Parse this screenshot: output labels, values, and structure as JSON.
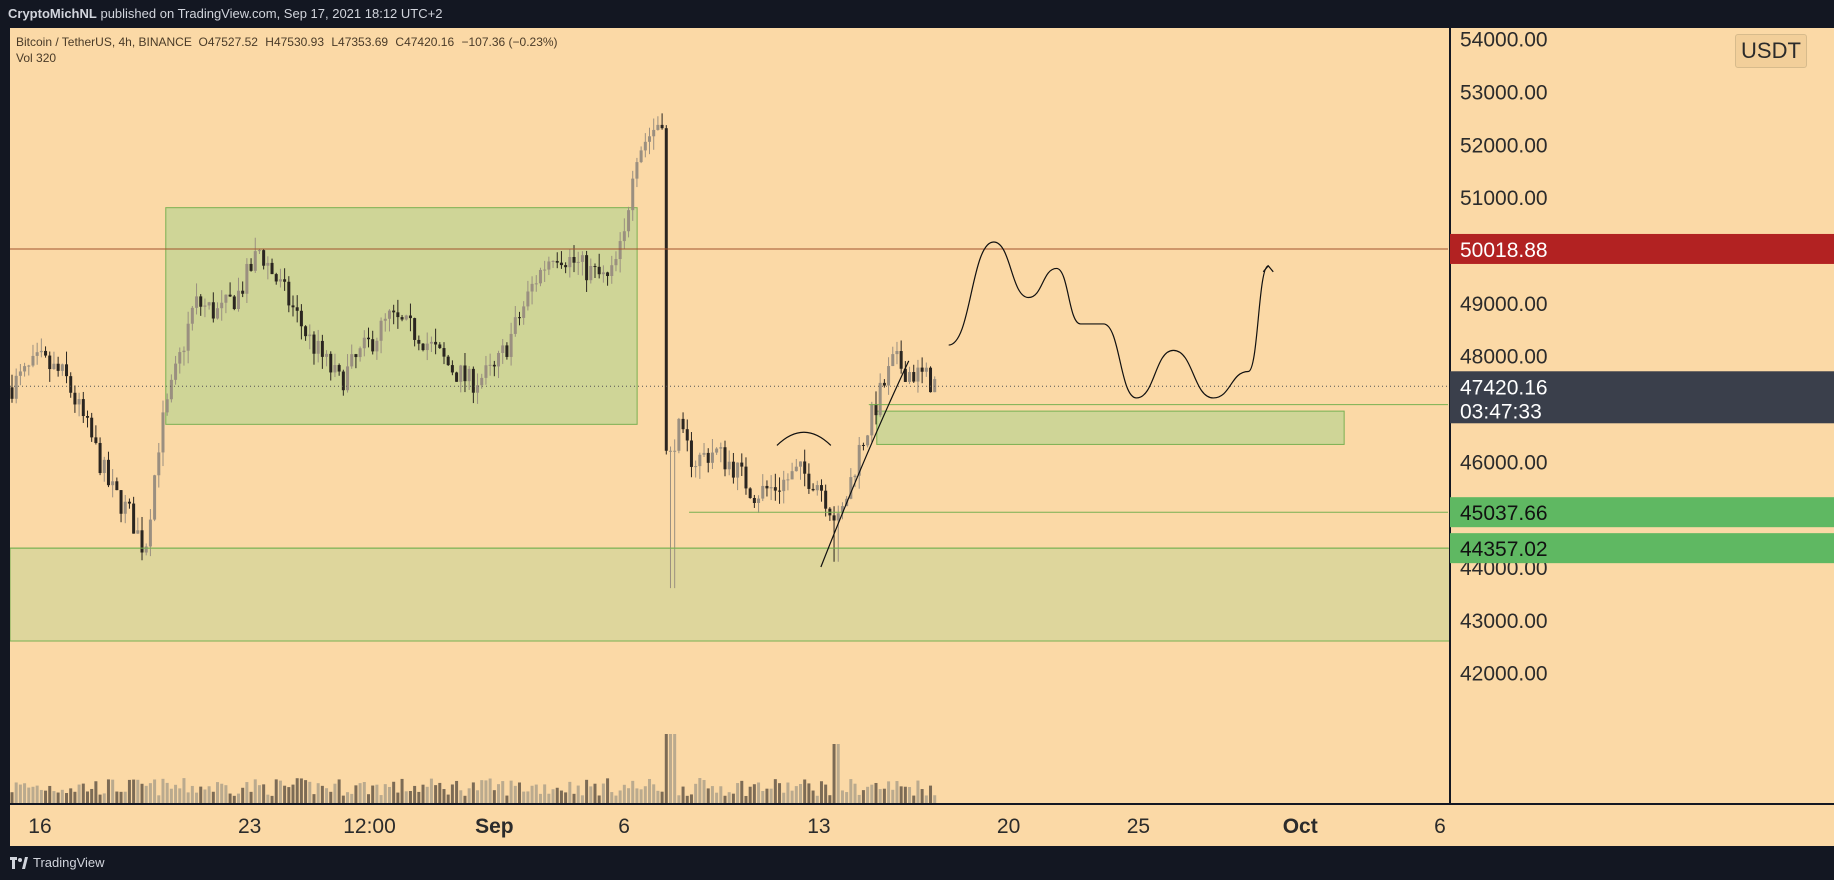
{
  "header": {
    "publisher": "CryptoMichNL",
    "publish_text": "published on TradingView.com, Sep 17, 2021 18:12 UTC+2"
  },
  "footer": {
    "brand": "TradingView"
  },
  "colors": {
    "background": "#fbd9a6",
    "frame": "#131722",
    "candle_up": "#9a8f80",
    "candle_down": "#2a2520",
    "zone_fill": "#c7d394",
    "zone_border": "#79b052",
    "resistance_line": "#a0522d",
    "resistance_label": "#b22222",
    "support_label": "#5fb862",
    "price_label": "#3a3f4b"
  },
  "chart_data": {
    "type": "candlestick",
    "symbol": "Bitcoin / TetherUS, 4h, BINANCE",
    "ohlc": {
      "open": "O47527.52",
      "high": "H47530.93",
      "low": "L47353.69",
      "close": "C47420.16",
      "change": "−107.36 (−0.23%)"
    },
    "volume_label": "Vol 320",
    "unit": "USDT",
    "ylim": [
      41900,
      54200
    ],
    "y_ticks": [
      {
        "value": 54000,
        "label": "54000.00"
      },
      {
        "value": 53000,
        "label": "53000.00"
      },
      {
        "value": 52000,
        "label": "52000.00"
      },
      {
        "value": 51000,
        "label": "51000.00"
      },
      {
        "value": 49000,
        "label": "49000.00"
      },
      {
        "value": 48000,
        "label": "48000.00"
      },
      {
        "value": 46000,
        "label": "46000.00"
      },
      {
        "value": 44000,
        "label": "44000.00"
      },
      {
        "value": 43000,
        "label": "43000.00"
      },
      {
        "value": 42000,
        "label": "42000.00"
      }
    ],
    "x_ticks": [
      {
        "label": "16",
        "bold": false
      },
      {
        "label": "23",
        "bold": false
      },
      {
        "label": "12:00",
        "bold": false
      },
      {
        "label": "Sep",
        "bold": true
      },
      {
        "label": "6",
        "bold": false
      },
      {
        "label": "13",
        "bold": false
      },
      {
        "label": "20",
        "bold": false
      },
      {
        "label": "25",
        "bold": false
      },
      {
        "label": "Oct",
        "bold": true
      },
      {
        "label": "6",
        "bold": false
      }
    ],
    "x_range": [
      0,
      1440
    ],
    "x_tick_positions": [
      30,
      240,
      360,
      485,
      615,
      810,
      1000,
      1130,
      1292,
      1432
    ],
    "candles_end_index": 930,
    "price_path": [
      [
        0,
        47400
      ],
      [
        30,
        47900
      ],
      [
        55,
        47600
      ],
      [
        80,
        46500
      ],
      [
        100,
        45500
      ],
      [
        120,
        45000
      ],
      [
        135,
        44300
      ],
      [
        150,
        46500
      ],
      [
        165,
        47600
      ],
      [
        185,
        49000
      ],
      [
        210,
        48800
      ],
      [
        230,
        49200
      ],
      [
        250,
        50000
      ],
      [
        265,
        49500
      ],
      [
        280,
        49000
      ],
      [
        300,
        48300
      ],
      [
        330,
        47500
      ],
      [
        350,
        48000
      ],
      [
        380,
        48700
      ],
      [
        410,
        48400
      ],
      [
        440,
        47800
      ],
      [
        460,
        47500
      ],
      [
        485,
        47700
      ],
      [
        505,
        48500
      ],
      [
        525,
        49400
      ],
      [
        545,
        50000
      ],
      [
        570,
        49700
      ],
      [
        600,
        49400
      ],
      [
        615,
        50200
      ],
      [
        625,
        51800
      ],
      [
        645,
        52300
      ],
      [
        655,
        52600
      ],
      [
        660,
        50300
      ],
      [
        670,
        46500
      ],
      [
        685,
        46000
      ],
      [
        705,
        46200
      ],
      [
        725,
        45900
      ],
      [
        745,
        45400
      ],
      [
        765,
        45500
      ],
      [
        790,
        45800
      ],
      [
        810,
        45600
      ],
      [
        830,
        44800
      ],
      [
        850,
        46200
      ],
      [
        870,
        47200
      ],
      [
        885,
        47900
      ],
      [
        900,
        47700
      ],
      [
        915,
        47600
      ],
      [
        930,
        47420
      ]
    ],
    "volume_range": [
      0,
      3000
    ],
    "current_price": {
      "value": 47420.16,
      "label": "47420.16",
      "countdown": "03:47:33"
    },
    "resistance": {
      "value": 50018.88,
      "label": "50018.88"
    },
    "supports": [
      {
        "value": 47073.8,
        "label": "47073.80"
      },
      {
        "value": 45037.66,
        "label": "45037.66"
      },
      {
        "value": 44357.02,
        "label": "44357.02"
      }
    ],
    "zones": [
      {
        "name": "range-box",
        "x0": 156,
        "x1": 628,
        "y_top": 50800,
        "y_bottom": 46700
      },
      {
        "name": "support-zone-upper",
        "x0": 868,
        "x1": 1336,
        "y_top": 46950,
        "y_bottom": 46320
      },
      {
        "name": "support-zone-lower",
        "x0": 0,
        "x1": 1448,
        "y_top": 44357.02,
        "y_bottom": 42600
      }
    ],
    "projection_path": [
      [
        940,
        48200
      ],
      [
        985,
        50150
      ],
      [
        1020,
        49100
      ],
      [
        1048,
        49650
      ],
      [
        1072,
        48600
      ],
      [
        1095,
        48600
      ],
      [
        1128,
        47200
      ],
      [
        1165,
        48100
      ],
      [
        1205,
        47200
      ],
      [
        1240,
        47700
      ],
      [
        1260,
        49700
      ]
    ]
  }
}
